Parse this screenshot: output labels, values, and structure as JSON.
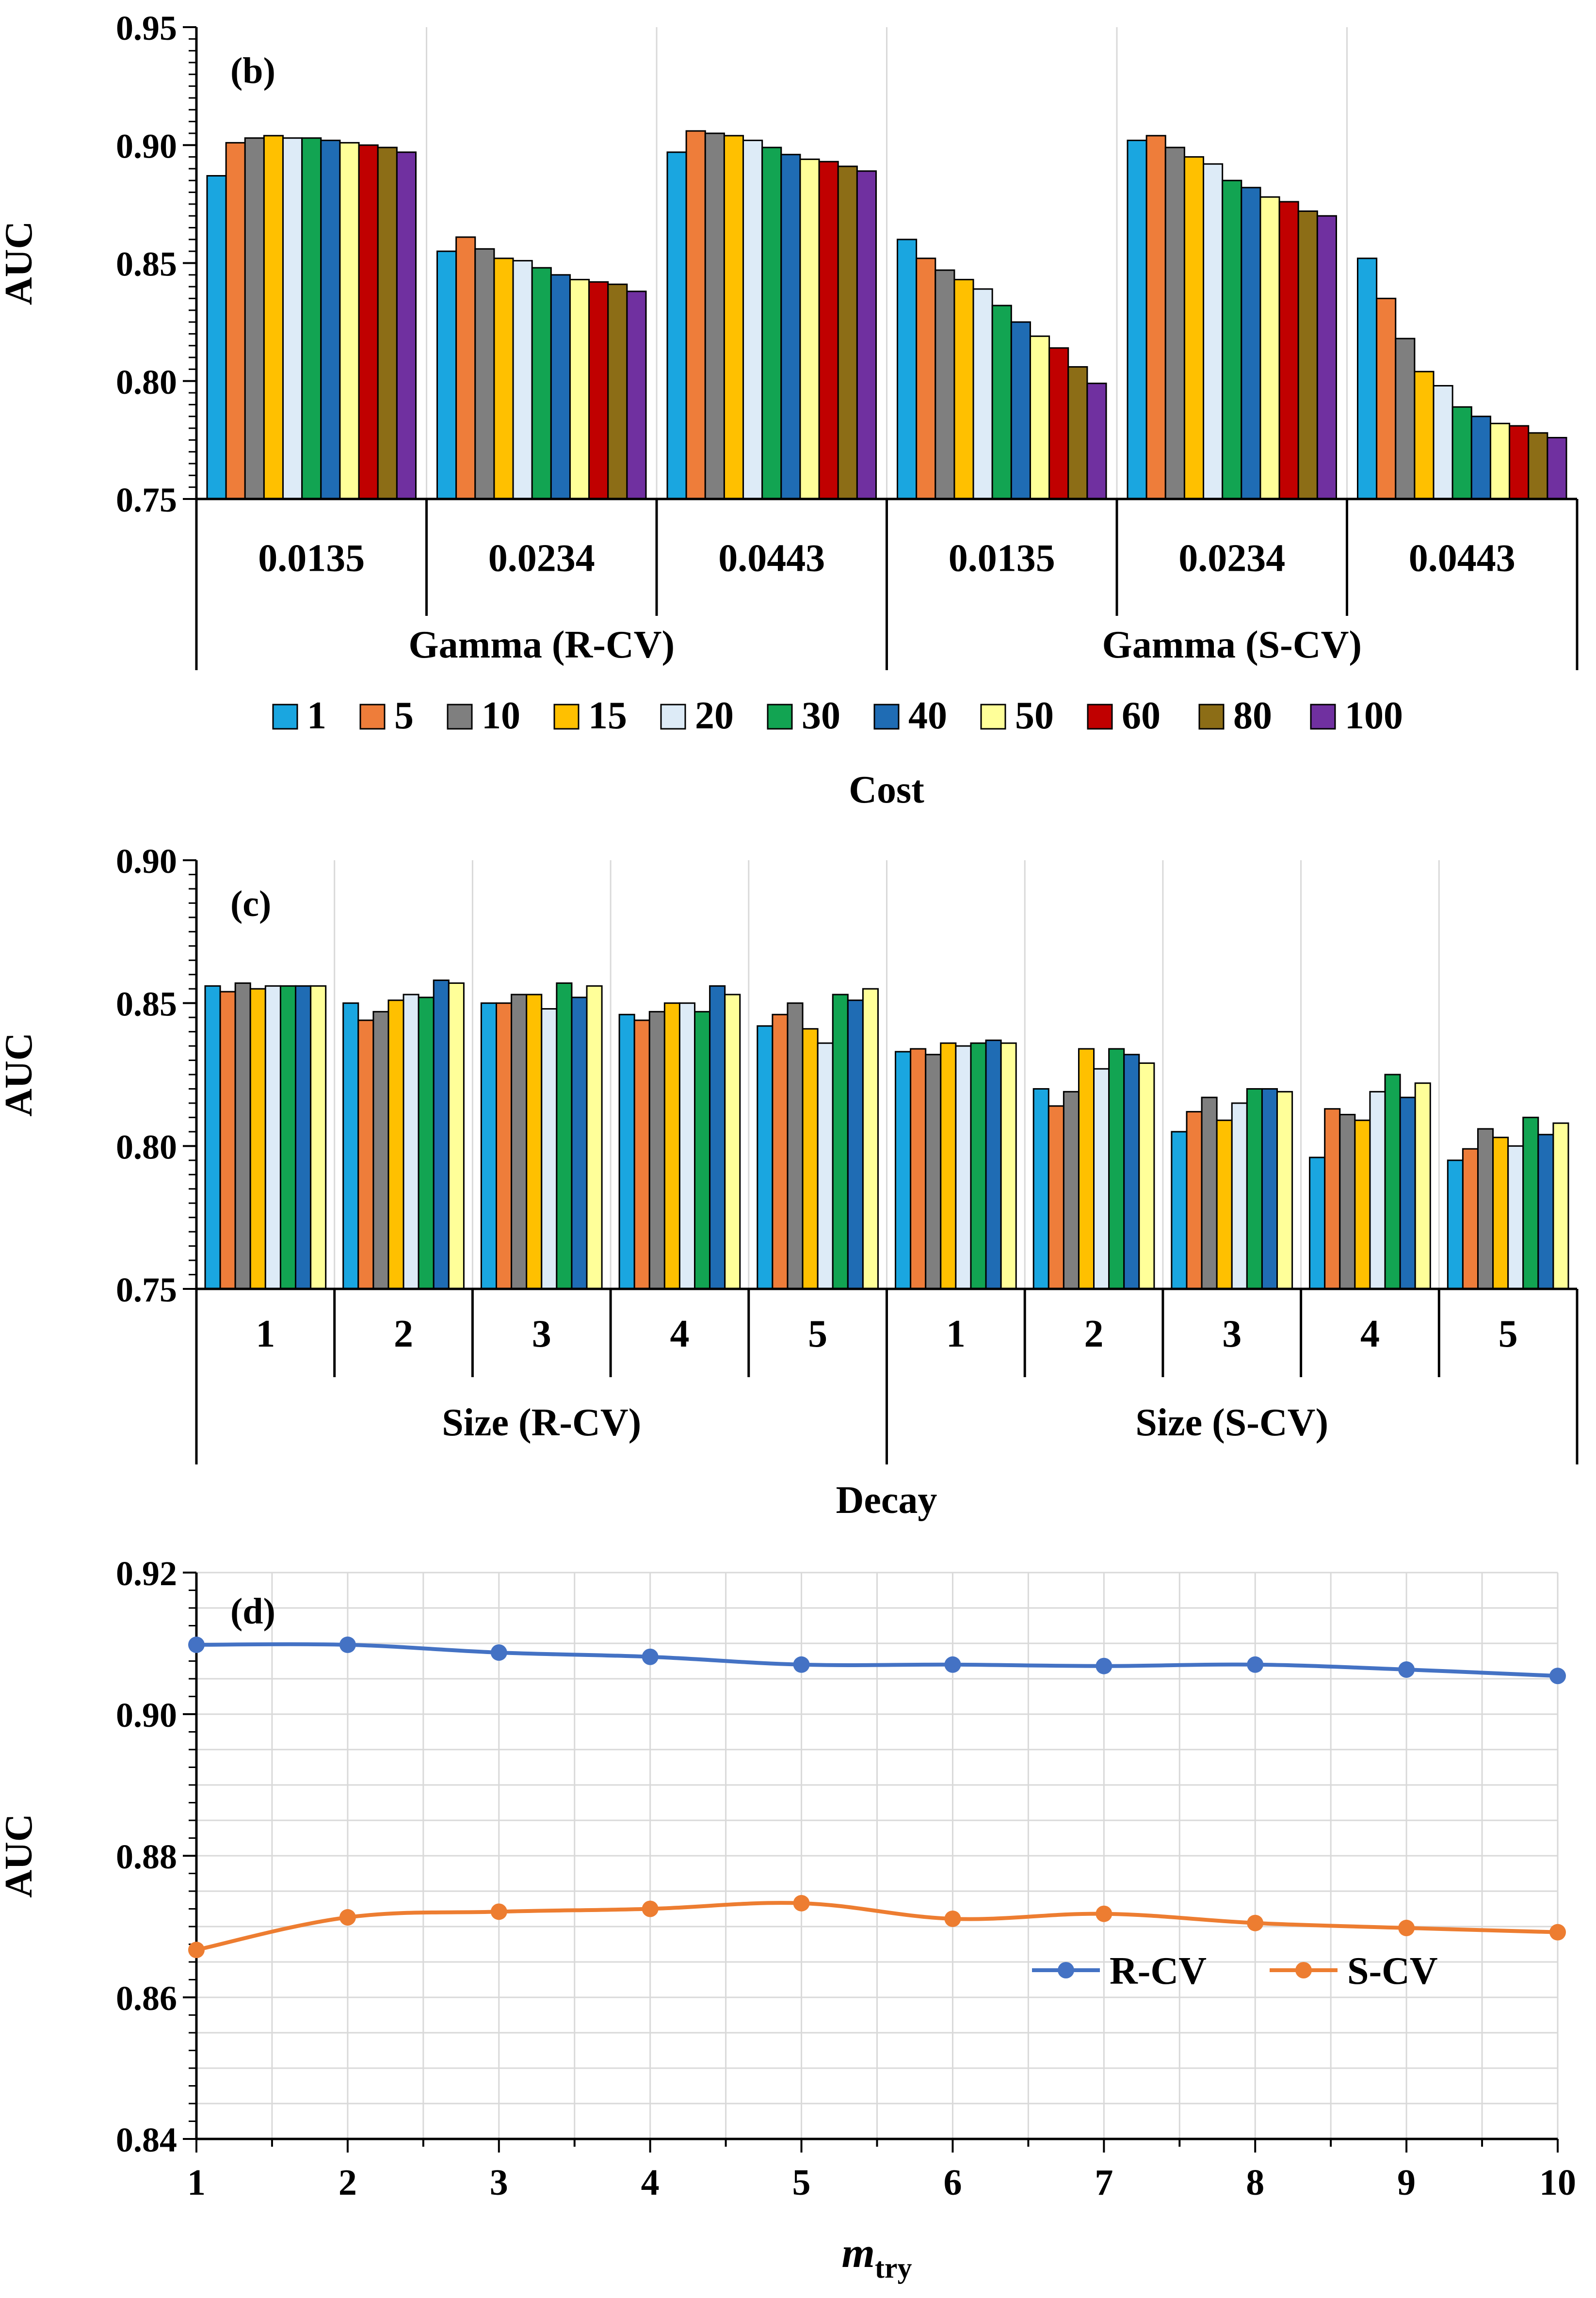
{
  "colors": {
    "1": "#1aa6e0",
    "5": "#ee7d3a",
    "10": "#7f7f7f",
    "15": "#ffc000",
    "20": "#ddebf7",
    "30": "#12a452",
    "40": "#1f6cb4",
    "50": "#ffff99",
    "60": "#c00000",
    "80": "#8c6d16",
    "100": "#7030a0",
    "rcv_line": "#4472c4",
    "scv_line": "#ed7d31",
    "grid": "#d9d9d9"
  },
  "chart_data": [
    {
      "type": "bar",
      "panel_label": "(b)",
      "ylabel": "AUC",
      "ylim": [
        0.75,
        0.95
      ],
      "yticks": [
        "0.75",
        "0.80",
        "0.85",
        "0.90",
        "0.95"
      ],
      "groups": [
        "Gamma (R-CV)",
        "Gamma (S-CV)"
      ],
      "categories": [
        "0.0135",
        "0.0234",
        "0.0443",
        "0.0135",
        "0.0234",
        "0.0443"
      ],
      "legend_title": "Cost",
      "legend_placement": "bottom",
      "series": [
        {
          "name": "1",
          "values": [
            0.887,
            0.855,
            0.897,
            0.86,
            0.902,
            0.852
          ]
        },
        {
          "name": "5",
          "values": [
            0.901,
            0.861,
            0.906,
            0.852,
            0.904,
            0.835
          ]
        },
        {
          "name": "10",
          "values": [
            0.903,
            0.856,
            0.905,
            0.847,
            0.899,
            0.818
          ]
        },
        {
          "name": "15",
          "values": [
            0.904,
            0.852,
            0.904,
            0.843,
            0.895,
            0.804
          ]
        },
        {
          "name": "20",
          "values": [
            0.903,
            0.851,
            0.902,
            0.839,
            0.892,
            0.798
          ]
        },
        {
          "name": "30",
          "values": [
            0.903,
            0.848,
            0.899,
            0.832,
            0.885,
            0.789
          ]
        },
        {
          "name": "40",
          "values": [
            0.902,
            0.845,
            0.896,
            0.825,
            0.882,
            0.785
          ]
        },
        {
          "name": "50",
          "values": [
            0.901,
            0.843,
            0.894,
            0.819,
            0.878,
            0.782
          ]
        },
        {
          "name": "60",
          "values": [
            0.9,
            0.842,
            0.893,
            0.814,
            0.876,
            0.781
          ]
        },
        {
          "name": "80",
          "values": [
            0.899,
            0.841,
            0.891,
            0.806,
            0.872,
            0.778
          ]
        },
        {
          "name": "100",
          "values": [
            0.897,
            0.838,
            0.889,
            0.799,
            0.87,
            0.776
          ]
        }
      ]
    },
    {
      "type": "bar",
      "panel_label": "(c)",
      "ylabel": "AUC",
      "ylim": [
        0.75,
        0.9
      ],
      "yticks": [
        "0.75",
        "0.80",
        "0.85",
        "0.90"
      ],
      "groups": [
        "Size (R-CV)",
        "Size (S-CV)"
      ],
      "categories": [
        "1",
        "2",
        "3",
        "4",
        "5",
        "1",
        "2",
        "3",
        "4",
        "5"
      ],
      "legend_title": "Decay",
      "series": [
        {
          "name": "1",
          "values": [
            0.856,
            0.85,
            0.85,
            0.846,
            0.842,
            0.833,
            0.82,
            0.805,
            0.796,
            0.795
          ]
        },
        {
          "name": "5",
          "values": [
            0.854,
            0.844,
            0.85,
            0.844,
            0.846,
            0.834,
            0.814,
            0.812,
            0.813,
            0.799
          ]
        },
        {
          "name": "10",
          "values": [
            0.857,
            0.847,
            0.853,
            0.847,
            0.85,
            0.832,
            0.819,
            0.817,
            0.811,
            0.806
          ]
        },
        {
          "name": "15",
          "values": [
            0.855,
            0.851,
            0.853,
            0.85,
            0.841,
            0.836,
            0.834,
            0.809,
            0.809,
            0.803
          ]
        },
        {
          "name": "20",
          "values": [
            0.856,
            0.853,
            0.848,
            0.85,
            0.836,
            0.835,
            0.827,
            0.815,
            0.819,
            0.8
          ]
        },
        {
          "name": "30",
          "values": [
            0.856,
            0.852,
            0.857,
            0.847,
            0.853,
            0.836,
            0.834,
            0.82,
            0.825,
            0.81
          ]
        },
        {
          "name": "40",
          "values": [
            0.856,
            0.858,
            0.852,
            0.856,
            0.851,
            0.837,
            0.832,
            0.82,
            0.817,
            0.804
          ]
        },
        {
          "name": "50",
          "values": [
            0.856,
            0.857,
            0.856,
            0.853,
            0.855,
            0.836,
            0.829,
            0.819,
            0.822,
            0.808
          ]
        }
      ]
    },
    {
      "type": "line",
      "panel_label": "(d)",
      "ylabel": "AUC",
      "xlabel_main": "m",
      "xlabel_sub": "try",
      "ylim": [
        0.84,
        0.92
      ],
      "yticks": [
        "0.84",
        "0.86",
        "0.88",
        "0.90",
        "0.92"
      ],
      "x": [
        1,
        2,
        3,
        4,
        5,
        6,
        7,
        8,
        9,
        10
      ],
      "xticks": [
        "1",
        "2",
        "3",
        "4",
        "5",
        "6",
        "7",
        "8",
        "9",
        "10"
      ],
      "grid": true,
      "legend_placement": "bottom-right",
      "series": [
        {
          "name": "R-CV",
          "values": [
            0.9098,
            0.9098,
            0.9087,
            0.9081,
            0.907,
            0.907,
            0.9068,
            0.907,
            0.9063,
            0.9054
          ]
        },
        {
          "name": "S-CV",
          "values": [
            0.8667,
            0.8713,
            0.8721,
            0.8725,
            0.8733,
            0.8711,
            0.8718,
            0.8705,
            0.8698,
            0.8692
          ]
        }
      ]
    }
  ]
}
